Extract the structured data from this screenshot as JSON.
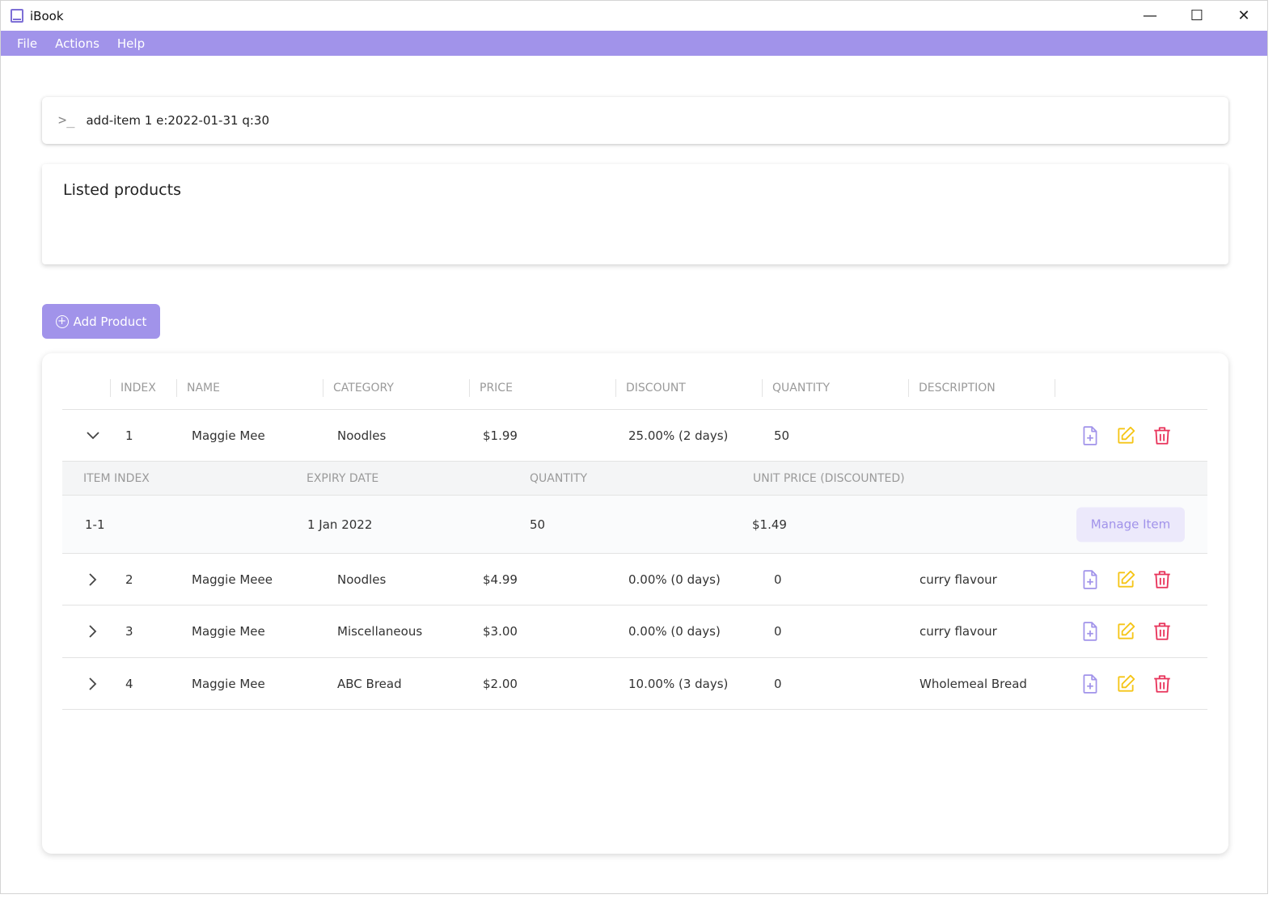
{
  "window": {
    "title": "iBook",
    "controls": [
      "—",
      "☐",
      "✕"
    ]
  },
  "menu": [
    "File",
    "Actions",
    "Help"
  ],
  "command": {
    "prompt": ">_",
    "value": "add-item 1 e:2022-01-31 q:30"
  },
  "result": {
    "title": "Listed products"
  },
  "add_button": {
    "label": "Add Product"
  },
  "table": {
    "headers": [
      "INDEX",
      "NAME",
      "CATEGORY",
      "PRICE",
      "DISCOUNT",
      "QUANTITY",
      "DESCRIPTION"
    ],
    "rows": [
      {
        "index": "1",
        "name": "Maggie Mee",
        "category": "Noodles",
        "price": "$1.99",
        "discount": "25.00% (2 days)",
        "quantity": "50",
        "description": "",
        "expanded": true
      },
      {
        "index": "2",
        "name": "Maggie Meee",
        "category": "Noodles",
        "price": "$4.99",
        "discount": "0.00% (0 days)",
        "quantity": "0",
        "description": "curry flavour",
        "expanded": false
      },
      {
        "index": "3",
        "name": "Maggie Mee",
        "category": "Miscellaneous",
        "price": "$3.00",
        "discount": "0.00% (0 days)",
        "quantity": "0",
        "description": "curry flavour",
        "expanded": false
      },
      {
        "index": "4",
        "name": "Maggie Mee",
        "category": "ABC Bread",
        "price": "$2.00",
        "discount": "10.00% (3 days)",
        "quantity": "0",
        "description": "Wholemeal Bread",
        "expanded": false
      }
    ],
    "sub": {
      "headers": [
        "ITEM INDEX",
        "EXPIRY DATE",
        "QUANTITY",
        "UNIT PRICE (DISCOUNTED)"
      ],
      "items": [
        {
          "item_index": "1-1",
          "expiry": "1 Jan 2022",
          "quantity": "50",
          "unit_price": "$1.49"
        }
      ],
      "manage_label": "Manage Item"
    }
  },
  "colors": {
    "accent": "#a193ea",
    "edit": "#f5c518",
    "delete": "#e8335a"
  }
}
